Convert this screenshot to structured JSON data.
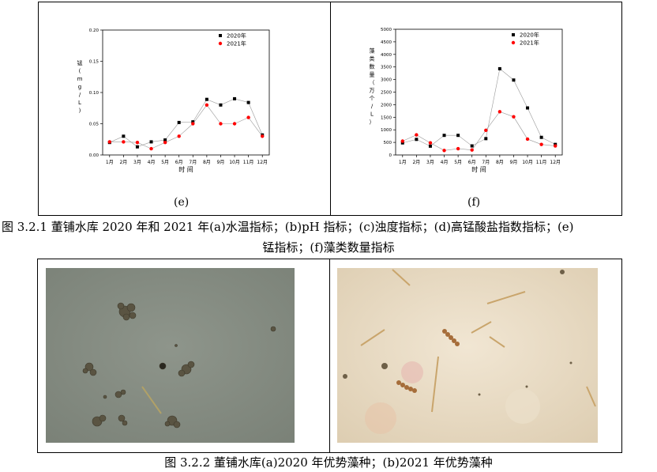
{
  "figure_top": {
    "caption_line1": "图 3.2.1 董铺水库 2020 年和 2021 年(a)水温指标；(b)pH 指标；(c)浊度指标；(d)高锰酸盐指数指标；(e)",
    "caption_line2": "锰指标；(f)藻类数量指标",
    "panel_e_label": "(e)",
    "panel_f_label": "(f)"
  },
  "figure_bottom": {
    "caption": "图 3.2.2 董铺水库(a)2020 年优势藻种；(b)2021 年优势藻种"
  },
  "colors": {
    "series_2020": "#000000",
    "series_2021": "#ff0000",
    "line": "#999999"
  },
  "chart_data": [
    {
      "type": "line",
      "panel": "(e)",
      "ylabel": "锰  (mg/L)",
      "xlabel": "时 间",
      "categories": [
        "1月",
        "2月",
        "3月",
        "4月",
        "5月",
        "6月",
        "7月",
        "8月",
        "9月",
        "10月",
        "11月",
        "12月"
      ],
      "ylim": [
        0,
        0.2
      ],
      "yticks": [
        "0.00",
        "0.05",
        "0.10",
        "0.15",
        "0.20"
      ],
      "legend_position": "top-right",
      "series": [
        {
          "name": "2020年",
          "marker": "square",
          "values": [
            0.02,
            0.03,
            0.013,
            0.021,
            0.024,
            0.052,
            0.053,
            0.089,
            0.08,
            0.09,
            0.084,
            0.032
          ]
        },
        {
          "name": "2021年",
          "marker": "circle",
          "values": [
            0.021,
            0.021,
            0.02,
            0.01,
            0.02,
            0.03,
            0.05,
            0.08,
            0.05,
            0.05,
            0.06,
            0.03
          ]
        }
      ]
    },
    {
      "type": "line",
      "panel": "(f)",
      "ylabel": "藻类数量 （万个/L）",
      "xlabel": "时 间",
      "categories": [
        "1月",
        "2月",
        "3月",
        "4月",
        "5月",
        "6月",
        "7月",
        "8月",
        "9月",
        "10月",
        "11月",
        "12月"
      ],
      "ylim": [
        0,
        5000
      ],
      "yticks": [
        "0",
        "500",
        "1000",
        "1500",
        "2000",
        "2500",
        "3000",
        "3500",
        "4000",
        "4500",
        "5000"
      ],
      "legend_position": "top-right",
      "series": [
        {
          "name": "2020年",
          "marker": "square",
          "values": [
            480,
            620,
            350,
            780,
            780,
            360,
            650,
            3430,
            2980,
            1870,
            700,
            420
          ]
        },
        {
          "name": "2021年",
          "marker": "circle",
          "values": [
            550,
            800,
            480,
            180,
            250,
            200,
            980,
            1720,
            1520,
            630,
            420,
            360
          ]
        }
      ]
    }
  ]
}
